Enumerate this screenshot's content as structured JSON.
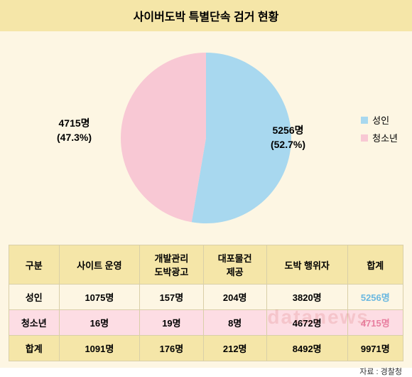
{
  "title": "사이버도박 특별단속 검거 현황",
  "pie": {
    "type": "pie",
    "radius": 120,
    "background": "#fdf6e3",
    "slices": [
      {
        "key": "adult",
        "label_line1": "5256명",
        "label_line2": "(52.7%)",
        "value": 52.7,
        "color": "#a8d8ef"
      },
      {
        "key": "youth",
        "label_line1": "4715명",
        "label_line2": "(47.3%)",
        "value": 47.3,
        "color": "#f8c8d4"
      }
    ]
  },
  "legend": {
    "items": [
      {
        "label": "성인",
        "color": "#a8d8ef"
      },
      {
        "label": "청소년",
        "color": "#f8c8d4"
      }
    ]
  },
  "table": {
    "columns": [
      "구분",
      "사이트 운영",
      "개발관리\n도박광고",
      "대포물건\n제공",
      "도박 행위자",
      "합계"
    ],
    "header_bg": "#f5e6a8",
    "border_color": "#d9cfa8",
    "rows": [
      {
        "label": "성인",
        "cells": [
          "1075명",
          "157명",
          "204명",
          "3820명",
          "5256명"
        ],
        "bg": "#fdf6e3",
        "hl_color": "#6bb8e0",
        "hl_index": 4
      },
      {
        "label": "청소년",
        "cells": [
          "16명",
          "19명",
          "8명",
          "4672명",
          "4715명"
        ],
        "bg": "#fddde4",
        "hl_color": "#e87fa0",
        "hl_index": 4
      },
      {
        "label": "합계",
        "cells": [
          "1091명",
          "176명",
          "212명",
          "8492명",
          "9971명"
        ],
        "bg": "#f5e6a8",
        "hl_color": null,
        "hl_index": null
      }
    ]
  },
  "source": "자료 : 경찰청",
  "watermark": "datanews",
  "colors": {
    "page_bg": "#fdf6e3",
    "header_bg": "#f5e6a8"
  }
}
